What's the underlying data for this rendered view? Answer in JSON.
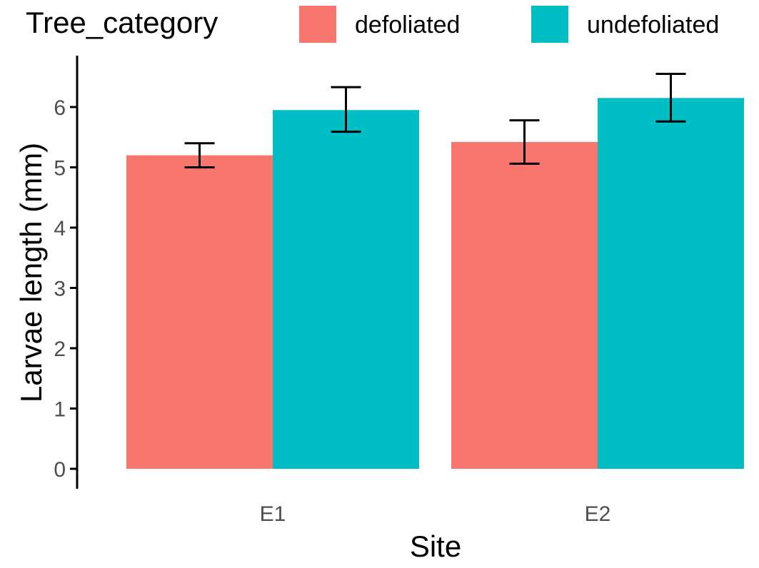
{
  "chart_data": {
    "type": "bar",
    "title": "",
    "xlabel": "Site",
    "ylabel": "Larvae length (mm)",
    "categories": [
      "E1",
      "E2"
    ],
    "yticks": [
      "0",
      "1",
      "2",
      "3",
      "4",
      "5",
      "6"
    ],
    "ylim": [
      0,
      6.8
    ],
    "legend": {
      "title": "Tree_category",
      "placement": "top"
    },
    "series": [
      {
        "name": "defoliated",
        "color": "#F8766D",
        "values": [
          5.2,
          5.42
        ],
        "error_low": [
          5.0,
          5.06
        ],
        "error_high": [
          5.4,
          5.78
        ]
      },
      {
        "name": "undefoliated",
        "color": "#00BFC4",
        "values": [
          5.95,
          6.15
        ],
        "error_low": [
          5.59,
          5.76
        ],
        "error_high": [
          6.33,
          6.55
        ]
      }
    ],
    "grid": false
  }
}
